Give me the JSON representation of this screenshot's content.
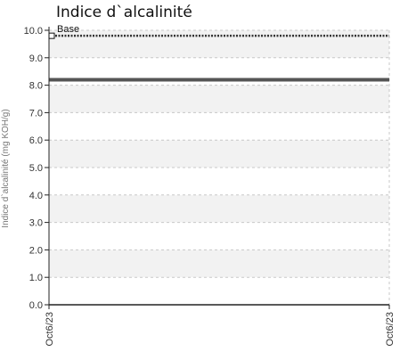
{
  "chart_data": {
    "type": "line",
    "title": "Indice d`alcalinité",
    "xlabel": "",
    "ylabel": "Indice d`alcalinité (mg KOH/g)",
    "ylim": [
      0,
      10
    ],
    "yticks": [
      "0.0",
      "1.0",
      "2.0",
      "3.0",
      "4.0",
      "5.0",
      "6.0",
      "7.0",
      "8.0",
      "9.0",
      "10.0"
    ],
    "xticks": [
      "Oct6/23",
      "Oct6/23"
    ],
    "grid": true,
    "legend_placement": "top-left",
    "series": [
      {
        "name": "Base",
        "style": "dotted",
        "color": "#333333",
        "marker": "square",
        "values": [
          9.8,
          9.8
        ]
      },
      {
        "name": "",
        "style": "solid",
        "color": "#555555",
        "values": [
          8.2,
          8.2
        ]
      }
    ],
    "band_colors": [
      "#f2f2f2",
      "#ffffff"
    ],
    "axis_color": "#222222"
  }
}
